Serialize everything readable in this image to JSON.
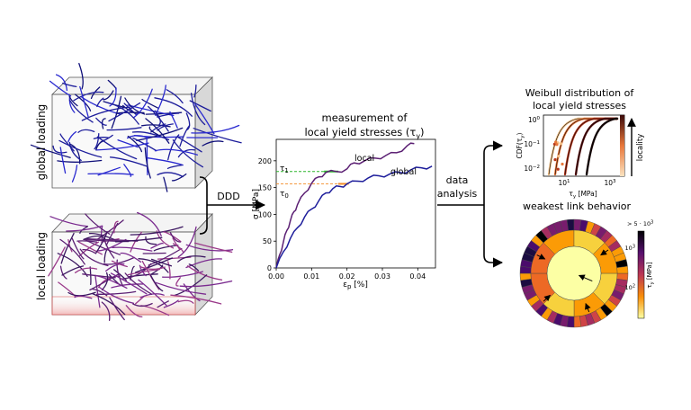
{
  "panels": {
    "global_cube_label": "global loading",
    "local_cube_label": "local loading",
    "arrow_ddd_label": "DDD",
    "arrow_data_label_line1": "data",
    "arrow_data_label_line2": "analysis"
  },
  "stress_strain": {
    "title_line1": "measurement of",
    "title_line2": "local yield stresses (τ",
    "title_sub": "y",
    "title_close": ")",
    "xlabel": "ε",
    "xlabel_sub": "p",
    "xlabel_unit": " [%]",
    "ylabel": "σ [MPa]",
    "tau1_label": "τ",
    "tau1_sub": "1",
    "tau0_label": "τ",
    "tau0_sub": "0",
    "local_label": "local",
    "global_label": "global",
    "colors": {
      "local": "#5b1f73",
      "global": "#1d1d9b",
      "tau1": "#2db52d",
      "tau0": "#f28c28"
    }
  },
  "chart_data": [
    {
      "type": "line",
      "title": "measurement of local yield stresses (τy)",
      "xlabel": "εp [%]",
      "ylabel": "σ [MPa]",
      "xlim": [
        0.0,
        0.045
      ],
      "ylim": [
        0,
        240
      ],
      "xticks": [
        "0.00",
        "0.01",
        "0.02",
        "0.03",
        "0.04"
      ],
      "yticks": [
        "0",
        "50",
        "100",
        "150",
        "200"
      ],
      "series": [
        {
          "name": "local",
          "x": [
            0,
            0.001,
            0.002,
            0.003,
            0.004,
            0.005,
            0.006,
            0.008,
            0.01,
            0.012,
            0.014,
            0.017,
            0.02,
            0.022,
            0.025,
            0.028,
            0.031,
            0.034,
            0.037,
            0.039
          ],
          "y": [
            0,
            25,
            48,
            70,
            88,
            105,
            118,
            140,
            158,
            170,
            178,
            180,
            185,
            196,
            200,
            205,
            210,
            215,
            228,
            232
          ]
        },
        {
          "name": "global",
          "x": [
            0,
            0.002,
            0.004,
            0.006,
            0.008,
            0.01,
            0.012,
            0.014,
            0.016,
            0.018,
            0.02,
            0.023,
            0.026,
            0.029,
            0.032,
            0.035,
            0.038,
            0.041,
            0.044
          ],
          "y": [
            0,
            30,
            55,
            75,
            95,
            110,
            125,
            140,
            148,
            152,
            157,
            162,
            168,
            172,
            175,
            178,
            183,
            187,
            190
          ]
        }
      ],
      "annotations": [
        {
          "label": "τ1",
          "y": 180
        },
        {
          "label": "τ0",
          "y": 157
        }
      ]
    },
    {
      "type": "line",
      "title": "Weibull distribution of local yield stresses",
      "xlabel": "τy [MPa]",
      "ylabel": "CDF(τy)",
      "xscale": "log",
      "yscale": "log",
      "xticks": [
        "10¹",
        "10³"
      ],
      "yticks": [
        "10⁰",
        "10⁻¹",
        "10⁻²"
      ],
      "side_label": "locality"
    }
  ],
  "weibull": {
    "title_line1": "Weibull distribution of",
    "title_line2": "local yield stresses",
    "ylabel": "CDF(τ",
    "ylabel_sub": "y",
    "ylabel_close": ")",
    "xlabel": "τ",
    "xlabel_sub": "y",
    "xlabel_unit": " [MPa]",
    "ytick_top": "10",
    "ytick_top_exp": "0",
    "ytick_mid": "10",
    "ytick_mid_exp": "−1",
    "ytick_bot": "10",
    "ytick_bot_exp": "−2",
    "xtick_1": "10",
    "xtick_1_exp": "1",
    "xtick_2": "10",
    "xtick_2_exp": "3",
    "side_label": "locality"
  },
  "weakest_link": {
    "title": "weakest link behavior",
    "cbar_top": "> 5 · 10",
    "cbar_top_exp": "3",
    "cbar_mid": "10",
    "cbar_mid_exp": "3",
    "cbar_low": "10",
    "cbar_low_exp": "2",
    "cbar_label": "τ",
    "cbar_label_sub": "y",
    "cbar_label_unit": " [MPa]"
  }
}
